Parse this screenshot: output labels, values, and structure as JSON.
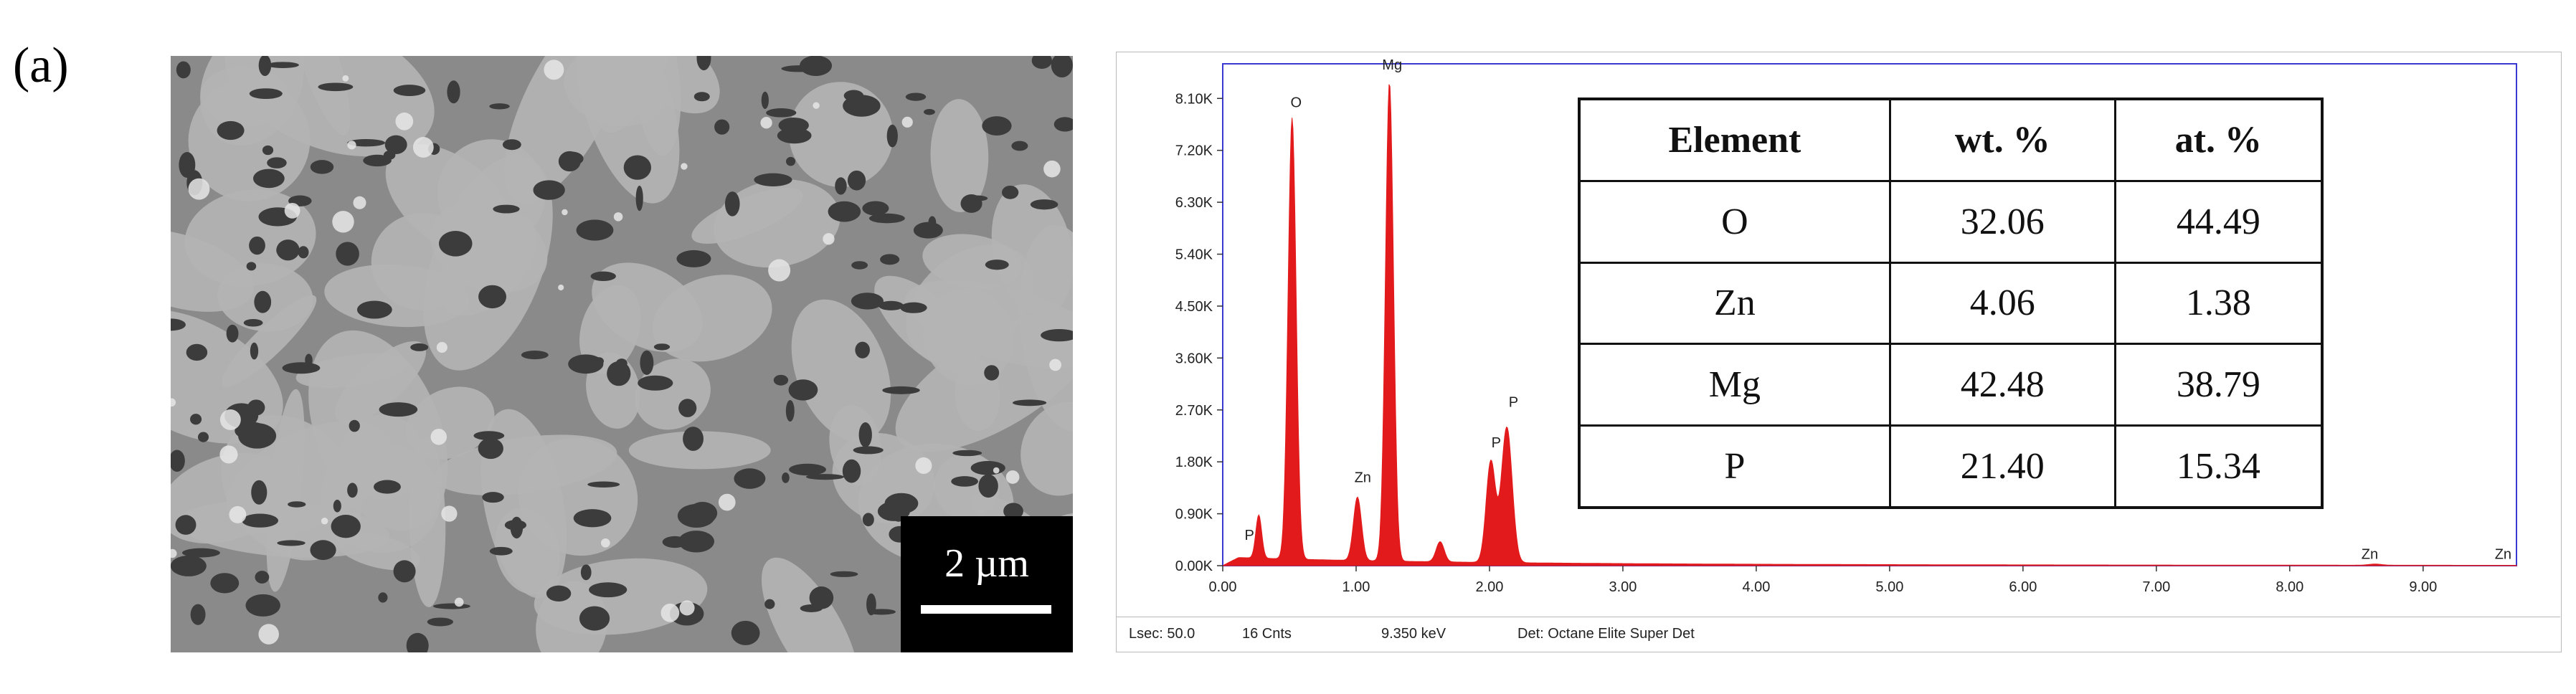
{
  "panel_label": "(a)",
  "sem": {
    "scale_text": "2 µm",
    "colors": {
      "background": "#8a8a8a",
      "blob": "#b4b4b4",
      "pore": "#3c3c3c",
      "particle": "#e6e6e6"
    }
  },
  "status_bar": {
    "lsec": "Lsec: 50.0",
    "cnts": "16 Cnts",
    "kev": "9.350 keV",
    "det": "Det: Octane Elite Super Det"
  },
  "table": {
    "headers": [
      "Element",
      "wt. %",
      "at. %"
    ],
    "rows": [
      [
        "O",
        "32.06",
        "44.49"
      ],
      [
        "Zn",
        "4.06",
        "1.38"
      ],
      [
        "Mg",
        "42.48",
        "38.79"
      ],
      [
        "P",
        "21.40",
        "15.34"
      ]
    ]
  },
  "chart_data": {
    "type": "area",
    "xlabel": "",
    "ylabel": "",
    "xlim": [
      0,
      9.7
    ],
    "ylim": [
      0,
      8.7
    ],
    "x_ticks": [
      "0.00",
      "1.00",
      "2.00",
      "3.00",
      "4.00",
      "5.00",
      "6.00",
      "7.00",
      "8.00",
      "9.00"
    ],
    "y_ticks": [
      "0.00K",
      "0.90K",
      "1.80K",
      "2.70K",
      "3.60K",
      "4.50K",
      "5.40K",
      "6.30K",
      "7.20K",
      "8.10K"
    ],
    "spectrum_color": "#e31a1c",
    "grid": false,
    "peaks": [
      {
        "x": 0.27,
        "y": 0.75,
        "width": 0.022
      },
      {
        "x": 0.52,
        "y": 7.65,
        "width": 0.03
      },
      {
        "x": 1.01,
        "y": 1.1,
        "width": 0.03
      },
      {
        "x": 1.25,
        "y": 8.3,
        "width": 0.03
      },
      {
        "x": 1.63,
        "y": 0.35,
        "width": 0.03
      },
      {
        "x": 2.01,
        "y": 1.75,
        "width": 0.035
      },
      {
        "x": 2.13,
        "y": 2.35,
        "width": 0.04
      },
      {
        "x": 8.64,
        "y": 0.02,
        "width": 0.05
      }
    ],
    "labels": [
      {
        "text": "O",
        "x": 0.55,
        "y": 7.95
      },
      {
        "text": "Mg",
        "x": 1.27,
        "y": 8.6
      },
      {
        "text": "Zn",
        "x": 1.05,
        "y": 1.45
      },
      {
        "text": "P",
        "x": 2.05,
        "y": 2.05
      },
      {
        "text": "P",
        "x": 2.18,
        "y": 2.75
      },
      {
        "text": "P",
        "x": 0.2,
        "y": 0.45
      },
      {
        "text": "Zn",
        "x": 8.6,
        "y": 0.12
      },
      {
        "text": "Zn",
        "x": 9.6,
        "y": 0.12
      }
    ]
  }
}
